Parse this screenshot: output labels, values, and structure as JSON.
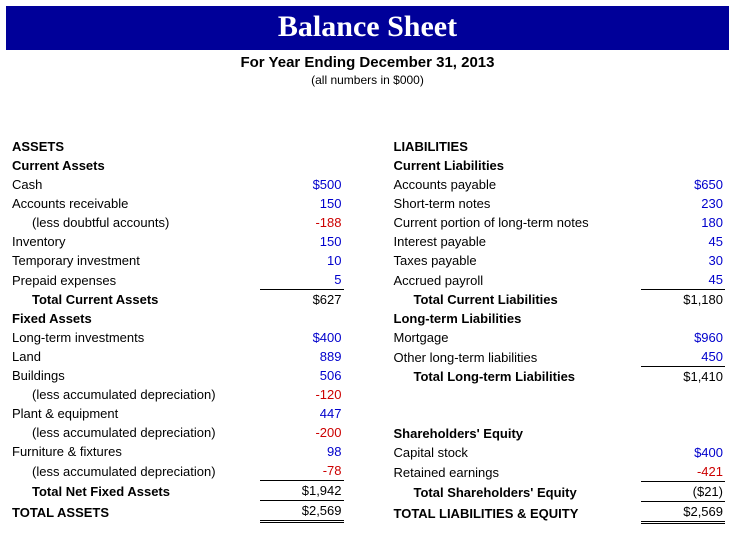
{
  "header": {
    "title": "Balance Sheet",
    "subtitle": "For Year Ending December 31, 2013",
    "note": "(all numbers in $000)"
  },
  "assets": {
    "heading": "ASSETS",
    "current": {
      "heading": "Current Assets",
      "items": {
        "cash": {
          "label": "Cash",
          "value": "$500"
        },
        "ar": {
          "label": "Accounts receivable",
          "value": "150"
        },
        "doubtful": {
          "label": "(less doubtful accounts)",
          "value": "-188"
        },
        "inventory": {
          "label": "Inventory",
          "value": "150"
        },
        "temp_inv": {
          "label": "Temporary investment",
          "value": "10"
        },
        "prepaid": {
          "label": "Prepaid expenses",
          "value": "5"
        }
      },
      "total": {
        "label": "Total Current Assets",
        "value": "$627"
      }
    },
    "fixed": {
      "heading": "Fixed Assets",
      "items": {
        "lt_inv": {
          "label": "Long-term investments",
          "value": "$400"
        },
        "land": {
          "label": "Land",
          "value": "889"
        },
        "buildings": {
          "label": "Buildings",
          "value": "506"
        },
        "bldg_dep": {
          "label": "(less accumulated depreciation)",
          "value": "-120"
        },
        "plant": {
          "label": "Plant & equipment",
          "value": "447"
        },
        "plant_dep": {
          "label": "(less accumulated depreciation)",
          "value": "-200"
        },
        "furn": {
          "label": "Furniture & fixtures",
          "value": "98"
        },
        "furn_dep": {
          "label": "(less accumulated depreciation)",
          "value": "-78"
        }
      },
      "total": {
        "label": "Total Net Fixed Assets",
        "value": "$1,942"
      }
    },
    "grand": {
      "label": "TOTAL ASSETS",
      "value": "$2,569"
    }
  },
  "liab": {
    "heading": "LIABILITIES",
    "current": {
      "heading": "Current Liabilities",
      "items": {
        "ap": {
          "label": "Accounts payable",
          "value": "$650"
        },
        "st_notes": {
          "label": "Short-term notes",
          "value": "230"
        },
        "cur_lt": {
          "label": "Current portion of long-term notes",
          "value": "180"
        },
        "int_pay": {
          "label": "Interest payable",
          "value": "45"
        },
        "tax_pay": {
          "label": "Taxes payable",
          "value": "30"
        },
        "acc_pay": {
          "label": "Accrued payroll",
          "value": "45"
        }
      },
      "total": {
        "label": "Total Current Liabilities",
        "value": "$1,180"
      }
    },
    "longterm": {
      "heading": "Long-term Liabilities",
      "items": {
        "mortgage": {
          "label": "Mortgage",
          "value": "$960"
        },
        "other_lt": {
          "label": "Other long-term liabilities",
          "value": "450"
        }
      },
      "total": {
        "label": "Total Long-term Liabilities",
        "value": "$1,410"
      }
    },
    "equity": {
      "heading": "Shareholders' Equity",
      "items": {
        "capital": {
          "label": "Capital stock",
          "value": "$400"
        },
        "retained": {
          "label": "Retained earnings",
          "value": "-421"
        }
      },
      "total": {
        "label": "Total Shareholders' Equity",
        "value": "($21)"
      }
    },
    "grand": {
      "label": "TOTAL LIABILITIES & EQUITY",
      "value": "$2,569"
    }
  }
}
